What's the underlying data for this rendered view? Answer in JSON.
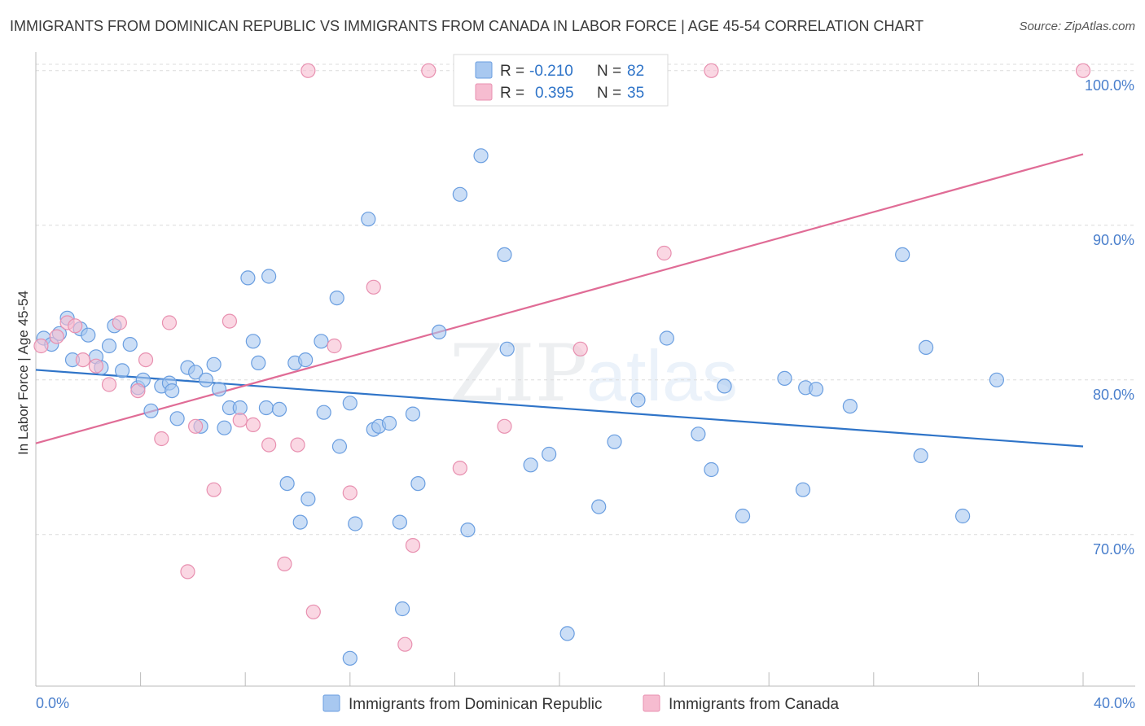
{
  "header": {
    "title": "IMMIGRANTS FROM DOMINICAN REPUBLIC VS IMMIGRANTS FROM CANADA IN LABOR FORCE | AGE 45-54 CORRELATION CHART",
    "source": "Source: ZipAtlas.com"
  },
  "legend": {
    "blue": {
      "r_label": "R =",
      "r_value": "-0.210",
      "n_label": "N =",
      "n_value": "82"
    },
    "pink": {
      "r_label": "R =",
      "r_value": "0.395",
      "n_label": "N =",
      "n_value": "35"
    }
  },
  "bottom_legend": {
    "blue_label": "Immigrants from Dominican Republic",
    "pink_label": "Immigrants from Canada"
  },
  "watermark": {
    "zip": "ZIP",
    "atlas": "atlas"
  },
  "colors": {
    "blue_fill": "#a8c8f0",
    "blue_stroke": "#6a9ee0",
    "blue_line": "#2f74c8",
    "pink_fill": "#f6bcd0",
    "pink_stroke": "#e890b0",
    "pink_line": "#e06c96",
    "tick_text": "#4a7fcc",
    "grid": "#dcdcdc"
  },
  "chart_data": {
    "type": "scatter",
    "title": "IMMIGRANTS FROM DOMINICAN REPUBLIC VS IMMIGRANTS FROM CANADA IN LABOR FORCE | AGE 45-54 CORRELATION CHART",
    "xlabel": "",
    "ylabel": "In Labor Force | Age 45-54",
    "xlim": [
      0,
      40
    ],
    "ylim": [
      60.2,
      101.2
    ],
    "x_tick_labels": [
      "0.0%",
      "40.0%"
    ],
    "y_ticks": [
      70,
      80,
      90,
      100
    ],
    "y_tick_labels": [
      "70.0%",
      "80.0%",
      "90.0%",
      "100.0%"
    ],
    "series": [
      {
        "name": "Immigrants from Dominican Republic",
        "color": "blue",
        "trend": {
          "x": [
            0,
            40
          ],
          "y": [
            80.65,
            75.7
          ]
        },
        "points": [
          [
            0.3,
            82.7
          ],
          [
            0.6,
            82.3
          ],
          [
            0.9,
            83.0
          ],
          [
            1.2,
            84.0
          ],
          [
            1.4,
            81.3
          ],
          [
            1.7,
            83.3
          ],
          [
            2.0,
            82.9
          ],
          [
            2.3,
            81.5
          ],
          [
            2.5,
            80.8
          ],
          [
            2.8,
            82.2
          ],
          [
            3.0,
            83.5
          ],
          [
            3.3,
            80.6
          ],
          [
            3.6,
            82.3
          ],
          [
            3.9,
            79.5
          ],
          [
            4.1,
            80.0
          ],
          [
            4.4,
            78.0
          ],
          [
            4.8,
            79.6
          ],
          [
            5.1,
            79.8
          ],
          [
            5.2,
            79.3
          ],
          [
            5.4,
            77.5
          ],
          [
            5.8,
            80.8
          ],
          [
            6.1,
            80.5
          ],
          [
            6.3,
            77.0
          ],
          [
            6.5,
            80.0
          ],
          [
            6.8,
            81.0
          ],
          [
            7.0,
            79.4
          ],
          [
            7.2,
            76.9
          ],
          [
            7.4,
            78.2
          ],
          [
            7.8,
            78.2
          ],
          [
            8.1,
            86.6
          ],
          [
            8.3,
            82.5
          ],
          [
            8.5,
            81.1
          ],
          [
            8.8,
            78.2
          ],
          [
            8.9,
            86.7
          ],
          [
            9.3,
            78.1
          ],
          [
            9.6,
            73.3
          ],
          [
            9.9,
            81.1
          ],
          [
            10.1,
            70.8
          ],
          [
            10.3,
            81.3
          ],
          [
            10.4,
            72.3
          ],
          [
            10.9,
            82.5
          ],
          [
            11.0,
            77.9
          ],
          [
            11.5,
            85.3
          ],
          [
            11.6,
            75.7
          ],
          [
            12.0,
            78.5
          ],
          [
            12.2,
            70.7
          ],
          [
            12.7,
            90.4
          ],
          [
            12.9,
            76.8
          ],
          [
            13.1,
            77.0
          ],
          [
            13.5,
            77.2
          ],
          [
            13.9,
            70.8
          ],
          [
            14.0,
            65.2
          ],
          [
            14.4,
            77.8
          ],
          [
            14.6,
            73.3
          ],
          [
            15.4,
            83.1
          ],
          [
            16.2,
            92.0
          ],
          [
            16.5,
            70.3
          ],
          [
            17.0,
            94.5
          ],
          [
            17.9,
            88.1
          ],
          [
            18.0,
            82.0
          ],
          [
            18.9,
            74.5
          ],
          [
            19.6,
            75.2
          ],
          [
            20.3,
            63.6
          ],
          [
            21.5,
            71.8
          ],
          [
            22.1,
            76.0
          ],
          [
            23.0,
            78.7
          ],
          [
            24.1,
            82.7
          ],
          [
            25.3,
            76.5
          ],
          [
            25.8,
            74.2
          ],
          [
            26.3,
            79.6
          ],
          [
            27.0,
            71.2
          ],
          [
            28.6,
            80.1
          ],
          [
            29.3,
            72.9
          ],
          [
            29.4,
            79.5
          ],
          [
            29.8,
            79.4
          ],
          [
            31.1,
            78.3
          ],
          [
            33.1,
            88.1
          ],
          [
            33.8,
            75.1
          ],
          [
            34.0,
            82.1
          ],
          [
            35.4,
            71.2
          ],
          [
            36.7,
            80.0
          ],
          [
            12.0,
            62.0
          ]
        ]
      },
      {
        "name": "Immigrants from Canada",
        "color": "pink",
        "trend": {
          "x": [
            0,
            40
          ],
          "y": [
            75.9,
            94.6
          ]
        },
        "points": [
          [
            0.2,
            82.2
          ],
          [
            0.8,
            82.8
          ],
          [
            1.2,
            83.7
          ],
          [
            1.5,
            83.5
          ],
          [
            1.8,
            81.3
          ],
          [
            2.3,
            80.9
          ],
          [
            2.8,
            79.7
          ],
          [
            3.2,
            83.7
          ],
          [
            3.9,
            79.3
          ],
          [
            4.2,
            81.3
          ],
          [
            4.8,
            76.2
          ],
          [
            5.1,
            83.7
          ],
          [
            5.8,
            67.6
          ],
          [
            6.1,
            77.0
          ],
          [
            6.8,
            72.9
          ],
          [
            7.4,
            83.8
          ],
          [
            7.8,
            77.4
          ],
          [
            8.3,
            77.1
          ],
          [
            8.9,
            75.8
          ],
          [
            9.5,
            68.1
          ],
          [
            10.0,
            75.8
          ],
          [
            10.4,
            100.0
          ],
          [
            10.6,
            65.0
          ],
          [
            11.4,
            82.2
          ],
          [
            12.0,
            72.7
          ],
          [
            12.9,
            86.0
          ],
          [
            14.1,
            62.9
          ],
          [
            14.4,
            69.3
          ],
          [
            15.0,
            100.0
          ],
          [
            16.2,
            74.3
          ],
          [
            17.9,
            77.0
          ],
          [
            20.8,
            82.0
          ],
          [
            24.0,
            88.2
          ],
          [
            25.8,
            100.0
          ],
          [
            40.0,
            100.0
          ]
        ]
      }
    ]
  }
}
